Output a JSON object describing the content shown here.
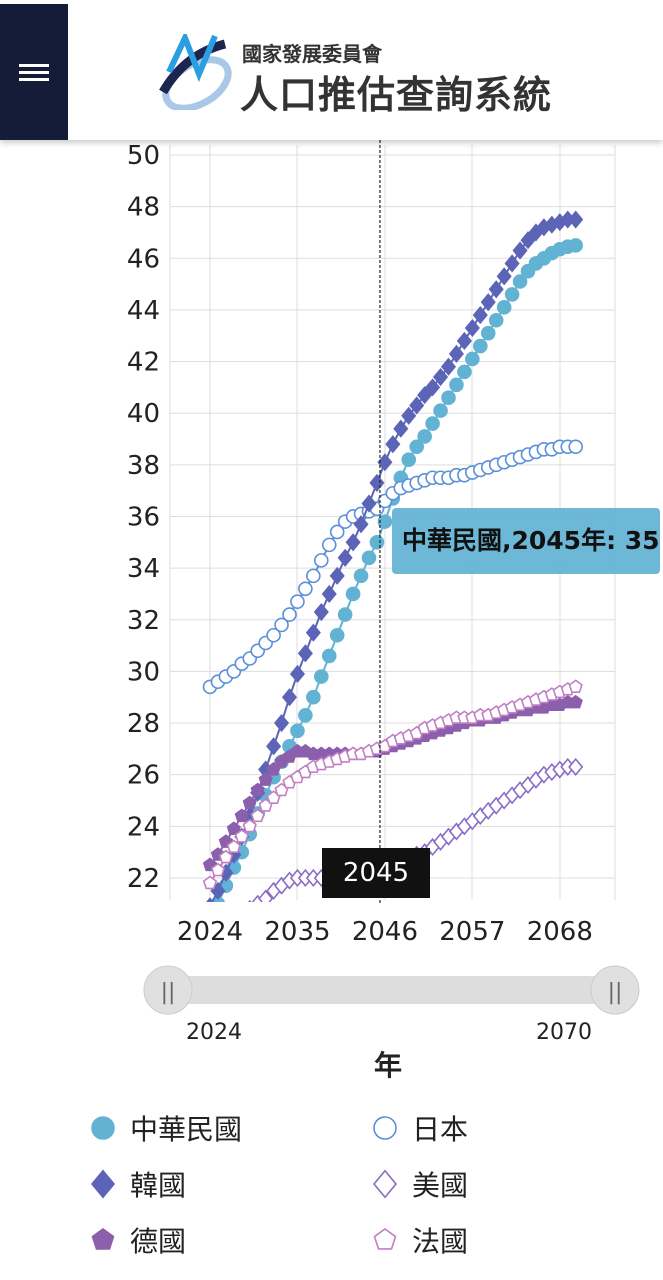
{
  "header": {
    "org": "國家發展委員會",
    "title": "人口推估查詢系統",
    "menu_icon": "hamburger-icon"
  },
  "tooltip": {
    "text": "中華民國,2045年: 35"
  },
  "crosshair_label": "2045",
  "slider": {
    "start": "2024",
    "end": "2070",
    "range": [
      2024,
      2070
    ]
  },
  "chart_data": {
    "type": "line",
    "xlabel": "年",
    "ylabel": "",
    "x_ticks": [
      "2024",
      "2035",
      "2046",
      "2057",
      "2068"
    ],
    "y_ticks": [
      "22",
      "24",
      "26",
      "28",
      "30",
      "32",
      "34",
      "36",
      "38",
      "40",
      "42",
      "44",
      "46",
      "48",
      "50"
    ],
    "ylim": [
      21.1,
      50
    ],
    "xlim": [
      2024,
      2070
    ],
    "grid": true,
    "legend": "bottom",
    "x": [
      2024,
      2025,
      2026,
      2027,
      2028,
      2029,
      2030,
      2031,
      2032,
      2033,
      2034,
      2035,
      2036,
      2037,
      2038,
      2039,
      2040,
      2041,
      2042,
      2043,
      2044,
      2045,
      2046,
      2047,
      2048,
      2049,
      2050,
      2051,
      2052,
      2053,
      2054,
      2055,
      2056,
      2057,
      2058,
      2059,
      2060,
      2061,
      2062,
      2063,
      2064,
      2065,
      2066,
      2067,
      2068,
      2069,
      2070
    ],
    "series": [
      {
        "name": "中華民國",
        "color": "#62b2d4",
        "marker": "circle",
        "filled": true,
        "values": [
          20.3,
          21.0,
          21.7,
          22.4,
          23.0,
          23.7,
          24.5,
          25.2,
          25.9,
          26.5,
          27.1,
          27.7,
          28.3,
          29.0,
          29.8,
          30.6,
          31.4,
          32.2,
          33.0,
          33.7,
          34.4,
          35.0,
          35.8,
          36.7,
          37.5,
          38.2,
          38.7,
          39.1,
          39.6,
          40.1,
          40.6,
          41.1,
          41.6,
          42.1,
          42.6,
          43.1,
          43.6,
          44.1,
          44.6,
          45.1,
          45.5,
          45.8,
          46.0,
          46.2,
          46.35,
          46.45,
          46.5
        ]
      },
      {
        "name": "日本",
        "color": "#5b8fd8",
        "marker": "circle",
        "filled": false,
        "values": [
          29.4,
          29.6,
          29.8,
          30.0,
          30.3,
          30.5,
          30.8,
          31.1,
          31.4,
          31.8,
          32.2,
          32.7,
          33.2,
          33.7,
          34.3,
          34.9,
          35.4,
          35.8,
          36.0,
          36.1,
          36.2,
          36.3,
          36.6,
          36.9,
          37.1,
          37.2,
          37.3,
          37.4,
          37.5,
          37.5,
          37.5,
          37.6,
          37.6,
          37.7,
          37.8,
          37.9,
          38.0,
          38.1,
          38.2,
          38.3,
          38.4,
          38.5,
          38.6,
          38.6,
          38.7,
          38.7,
          38.7
        ]
      },
      {
        "name": "韓國",
        "color": "#5c64b8",
        "marker": "diamond",
        "filled": true,
        "values": [
          20.9,
          21.5,
          22.2,
          22.9,
          23.6,
          24.4,
          25.3,
          26.2,
          27.1,
          28.0,
          29.0,
          29.9,
          30.7,
          31.5,
          32.3,
          33.0,
          33.7,
          34.4,
          35.0,
          35.7,
          36.5,
          37.3,
          38.1,
          38.8,
          39.4,
          39.9,
          40.3,
          40.7,
          41.0,
          41.4,
          41.8,
          42.3,
          42.8,
          43.3,
          43.8,
          44.3,
          44.8,
          45.3,
          45.8,
          46.3,
          46.7,
          47.0,
          47.2,
          47.3,
          47.4,
          47.5,
          47.5
        ]
      },
      {
        "name": "美國",
        "color": "#8a6cc6",
        "marker": "diamond",
        "filled": false,
        "values": [
          20.3,
          20.4,
          20.5,
          20.6,
          20.7,
          20.8,
          21.0,
          21.2,
          21.5,
          21.7,
          21.9,
          22.0,
          22.0,
          22.0,
          22.0,
          22.1,
          22.1,
          22.2,
          22.2,
          22.3,
          22.3,
          22.4,
          22.5,
          22.6,
          22.7,
          22.8,
          22.9,
          23.0,
          23.2,
          23.4,
          23.6,
          23.8,
          24.0,
          24.2,
          24.4,
          24.6,
          24.8,
          25.0,
          25.2,
          25.4,
          25.6,
          25.8,
          26.0,
          26.1,
          26.2,
          26.3,
          26.3
        ]
      },
      {
        "name": "德國",
        "color": "#8c5fac",
        "marker": "pentagon",
        "filled": true,
        "values": [
          22.5,
          22.9,
          23.4,
          23.9,
          24.4,
          24.9,
          25.4,
          25.8,
          26.2,
          26.5,
          26.7,
          26.9,
          26.9,
          26.8,
          26.8,
          26.8,
          26.8,
          26.8,
          26.8,
          26.8,
          26.9,
          26.9,
          27.0,
          27.1,
          27.2,
          27.3,
          27.4,
          27.5,
          27.6,
          27.7,
          27.8,
          27.9,
          28.0,
          28.1,
          28.1,
          28.2,
          28.2,
          28.3,
          28.4,
          28.5,
          28.5,
          28.6,
          28.6,
          28.7,
          28.7,
          28.8,
          28.8
        ]
      },
      {
        "name": "法國",
        "color": "#c27fc4",
        "marker": "pentagon",
        "filled": false,
        "values": [
          21.8,
          22.3,
          22.8,
          23.2,
          23.6,
          24.0,
          24.4,
          24.8,
          25.1,
          25.4,
          25.7,
          25.9,
          26.1,
          26.3,
          26.4,
          26.5,
          26.6,
          26.7,
          26.8,
          26.8,
          26.9,
          27.0,
          27.1,
          27.3,
          27.4,
          27.5,
          27.6,
          27.8,
          27.9,
          28.0,
          28.1,
          28.2,
          28.2,
          28.2,
          28.3,
          28.3,
          28.4,
          28.5,
          28.6,
          28.7,
          28.8,
          28.9,
          29.0,
          29.1,
          29.2,
          29.3,
          29.4
        ]
      }
    ],
    "crosshair_x": 2045
  }
}
